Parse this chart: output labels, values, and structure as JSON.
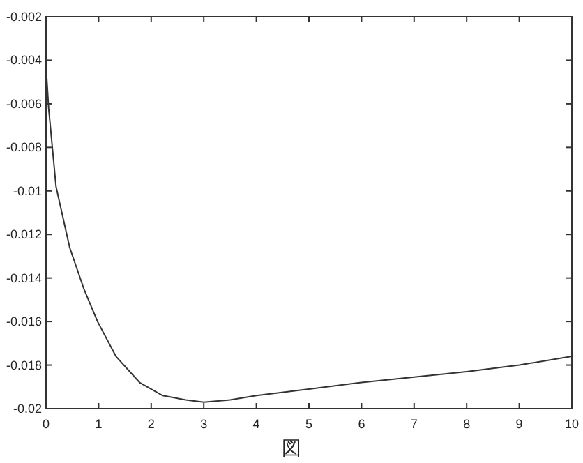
{
  "chart_data": {
    "type": "line",
    "x": [
      0,
      0.05,
      0.19,
      0.45,
      0.72,
      0.98,
      1.33,
      1.78,
      2.22,
      2.66,
      3.0,
      3.5,
      4,
      5,
      6,
      7,
      8,
      9,
      10
    ],
    "series": [
      {
        "color": "#333333",
        "values": [
          -0.0043,
          -0.0062,
          -0.0098,
          -0.0126,
          -0.0145,
          -0.016,
          -0.0176,
          -0.0188,
          -0.0194,
          -0.0196,
          -0.0197,
          -0.0196,
          -0.0194,
          -0.0191,
          -0.0188,
          -0.01855,
          -0.0183,
          -0.018,
          -0.0176
        ]
      }
    ],
    "xlim": [
      0,
      10
    ],
    "ylim": [
      -0.02,
      -0.002
    ],
    "xticks": [
      0,
      1,
      2,
      3,
      4,
      5,
      6,
      7,
      8,
      9,
      10
    ],
    "yticks": [
      -0.02,
      -0.018,
      -0.016,
      -0.014,
      -0.012,
      -0.01,
      -0.008,
      -0.006,
      -0.004,
      -0.002
    ],
    "grid": false,
    "marker": "none",
    "line_style": "solid",
    "annotations": [
      "図"
    ]
  }
}
